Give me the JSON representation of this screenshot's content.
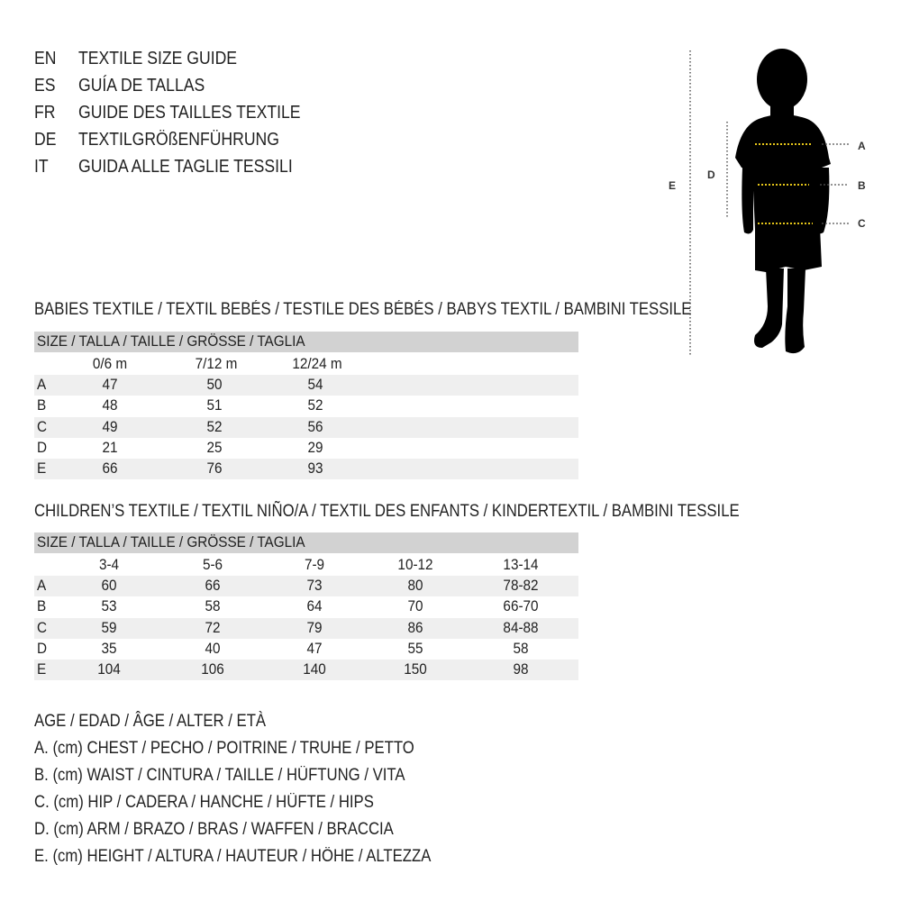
{
  "titles": [
    {
      "lang": "EN",
      "text": "TEXTILE SIZE GUIDE"
    },
    {
      "lang": "ES",
      "text": "GUÍA DE TALLAS"
    },
    {
      "lang": "FR",
      "text": "GUIDE DES TAILLES TEXTILE"
    },
    {
      "lang": "DE",
      "text": "TEXTILGRÖßENFÜHRUNG"
    },
    {
      "lang": "IT",
      "text": "GUIDA ALLE TAGLIE TESSILI"
    }
  ],
  "figure": {
    "labels": {
      "a": "A",
      "b": "B",
      "c": "C",
      "d": "D",
      "e": "E"
    },
    "marker_color": "#e6c619"
  },
  "babies": {
    "heading": "BABIES TEXTILE / TEXTIL BEBÉS / TESTILE DES BÉBÉS / BABYS TEXTIL / BAMBINI TESSILE",
    "size_header": "SIZE / TALLA / TAILLE / GRÖSSE / TAGLIA",
    "columns": [
      "0/6 m",
      "7/12 m",
      "12/24 m"
    ],
    "rows": [
      {
        "label": "A",
        "values": [
          "47",
          "50",
          "54"
        ]
      },
      {
        "label": "B",
        "values": [
          "48",
          "51",
          "52"
        ]
      },
      {
        "label": "C",
        "values": [
          "49",
          "52",
          "56"
        ]
      },
      {
        "label": "D",
        "values": [
          "21",
          "25",
          "29"
        ]
      },
      {
        "label": "E",
        "values": [
          "66",
          "76",
          "93"
        ]
      }
    ]
  },
  "children": {
    "heading": "CHILDREN’S TEXTILE / TEXTIL NIÑO/A / TEXTIL DES ENFANTS / KINDERTEXTIL / BAMBINI TESSILE",
    "size_header": "SIZE / TALLA / TAILLE / GRÖSSE / TAGLIA",
    "columns": [
      "3-4",
      "5-6",
      "7-9",
      "10-12",
      "13-14"
    ],
    "rows": [
      {
        "label": "A",
        "values": [
          "60",
          "66",
          "73",
          "80",
          "78-82"
        ]
      },
      {
        "label": "B",
        "values": [
          "53",
          "58",
          "64",
          "70",
          "66-70"
        ]
      },
      {
        "label": "C",
        "values": [
          "59",
          "72",
          "79",
          "86",
          "84-88"
        ]
      },
      {
        "label": "D",
        "values": [
          "35",
          "40",
          "47",
          "55",
          "58"
        ]
      },
      {
        "label": "E",
        "values": [
          "104",
          "106",
          "140",
          "150",
          "98"
        ]
      }
    ]
  },
  "legend": [
    "AGE / EDAD / ÂGE / ALTER / ETÀ",
    "A. (cm) CHEST / PECHO / POITRINE / TRUHE / PETTO",
    "B. (cm) WAIST / CINTURA / TAILLE / HÜFTUNG / VITA",
    "C. (cm) HIP / CADERA / HANCHE / HÜFTE / HIPS",
    "D. (cm) ARM / BRAZO / BRAS / WAFFEN / BRACCIA",
    "E. (cm) HEIGHT / ALTURA / HAUTEUR / HÖHE / ALTEZZA"
  ]
}
